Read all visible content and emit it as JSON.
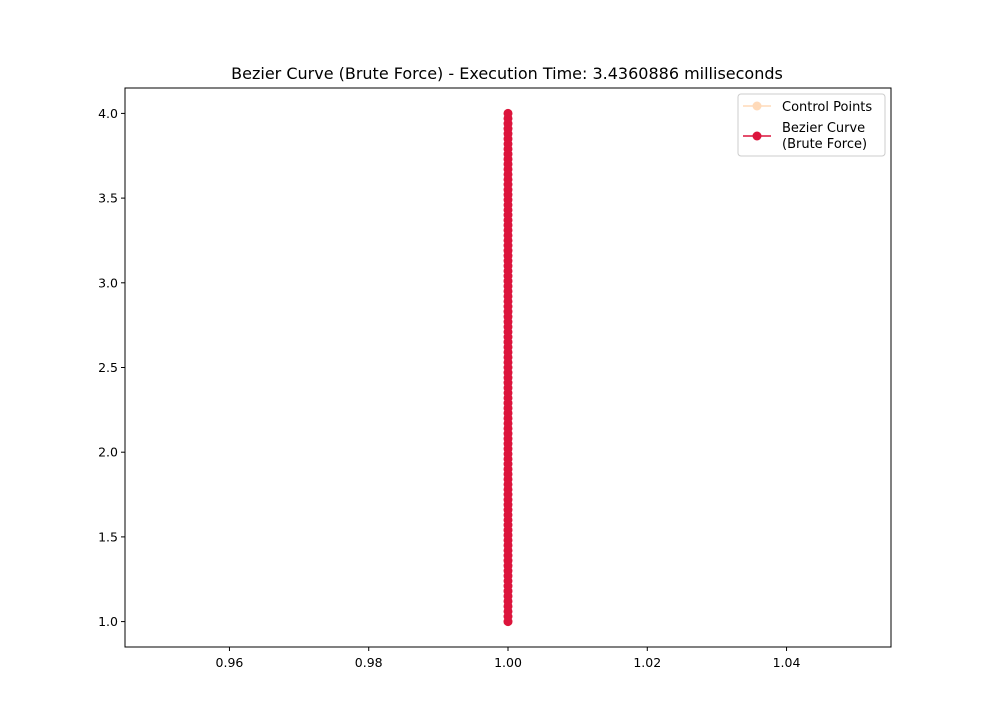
{
  "chart_data": {
    "type": "line",
    "title": "Bezier Curve (Brute Force) - Execution Time: 3.4360886 milliseconds",
    "xlabel": "",
    "ylabel": "",
    "xlim": [
      0.945,
      1.055
    ],
    "ylim": [
      0.85,
      4.15
    ],
    "x_ticks": [
      0.96,
      0.98,
      1.0,
      1.02,
      1.04
    ],
    "x_tick_labels": [
      "0.96",
      "0.98",
      "1.00",
      "1.02",
      "1.04"
    ],
    "y_ticks": [
      1.0,
      1.5,
      2.0,
      2.5,
      3.0,
      3.5,
      4.0
    ],
    "y_tick_labels": [
      "1.0",
      "1.5",
      "2.0",
      "2.5",
      "3.0",
      "3.5",
      "4.0"
    ],
    "grid": false,
    "legend_position": "top-right",
    "series": [
      {
        "name": "Control Points",
        "color": "#ffdab9",
        "marker": "circle",
        "x": [
          1.0,
          1.0
        ],
        "y": [
          1.0,
          4.0
        ]
      },
      {
        "name": "Bezier Curve\n(Brute Force)",
        "color": "#dc143c",
        "marker": "circle",
        "x_constant": 1.0,
        "y_start": 1.0,
        "y_end": 4.0,
        "point_count": 101
      }
    ]
  }
}
